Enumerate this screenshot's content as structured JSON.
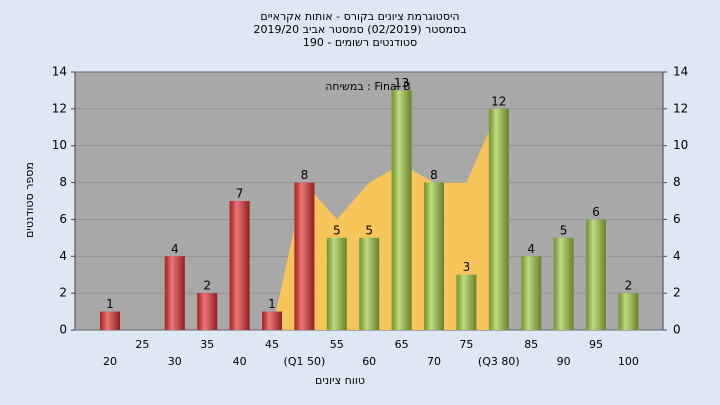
{
  "chart_data": {
    "type": "bar",
    "title": [
      "היסטוגרמת ציונים בקורס - אותות אקראיים",
      "בסמסטר  (02/2019)  סמסטר אביב 2019/20",
      "סטודנטים רשומים - 190"
    ],
    "annotation": "במשיחה : Final B",
    "y_label": "מספר סטודנטים",
    "x_label": "טווח ציונים",
    "categories": [
      "20",
      "25",
      "30",
      "35",
      "40",
      "45",
      "(Q1 50)",
      "55",
      "60",
      "65",
      "70",
      "75",
      "(Q3 80)",
      "85",
      "90",
      "95",
      "100"
    ],
    "values": [
      1,
      null,
      4,
      2,
      7,
      1,
      8,
      5,
      5,
      13,
      8,
      3,
      12,
      4,
      5,
      6,
      2
    ],
    "colors": [
      "#e03030",
      null,
      "#e03030",
      "#e03030",
      "#e03030",
      "#e03030",
      "#e03030",
      "#9cc840",
      "#9cc840",
      "#9cc840",
      "#9cc840",
      "#9cc840",
      "#9cc840",
      "#9cc840",
      "#9cc840",
      "#9cc840",
      "#9cc840"
    ],
    "area": {
      "color": "#ffc850",
      "values": [
        null,
        null,
        null,
        null,
        null,
        0,
        8,
        6,
        8,
        9,
        8,
        8,
        12,
        null,
        null,
        null,
        null
      ]
    },
    "ylim": [
      0,
      14
    ],
    "yticks": [
      0,
      2,
      4,
      6,
      8,
      10,
      12,
      14
    ],
    "y2lim": [
      0,
      14
    ],
    "y2ticks": [
      0,
      2,
      4,
      6,
      8,
      10,
      12,
      14
    ],
    "grid": true
  }
}
